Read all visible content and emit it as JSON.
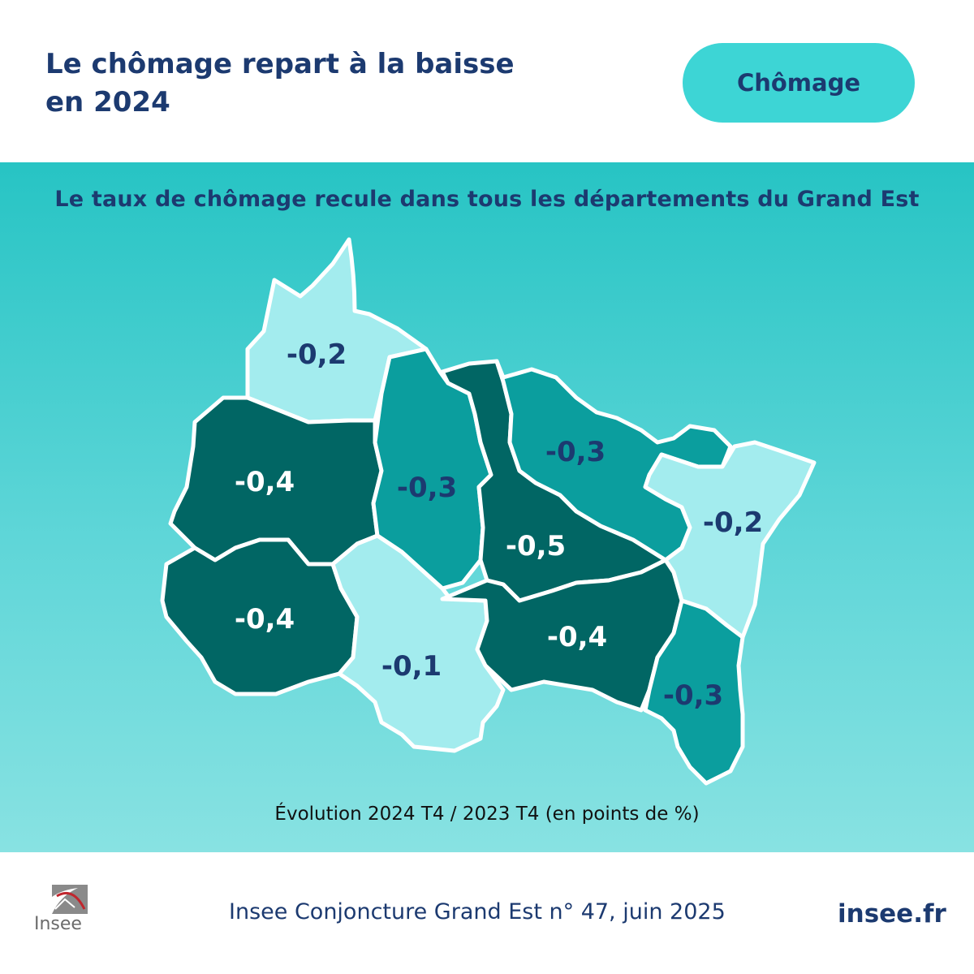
{
  "header": {
    "title_lines": [
      "Le chômage repart à la baisse",
      "en 2024"
    ],
    "tag": "Chômage"
  },
  "panel": {
    "subtitle": "Le taux de chômage recule dans tous les départements du Grand Est",
    "caption": "Évolution 2024 T4 / 2023 T4 (en points de %)"
  },
  "colors": {
    "light": "#a3ecee",
    "medium": "#0b9e9e",
    "dark": "#016664",
    "label_on_light": "#1c3a70",
    "label_on_dark": "#ffffff"
  },
  "regions": [
    {
      "value": "-0,2",
      "shade": "light"
    },
    {
      "value": "-0,4",
      "shade": "dark"
    },
    {
      "value": "-0,3",
      "shade": "medium"
    },
    {
      "value": "-0,4",
      "shade": "dark"
    },
    {
      "value": "-0,1",
      "shade": "light"
    },
    {
      "value": "-0,5",
      "shade": "dark"
    },
    {
      "value": "-0,3",
      "shade": "medium"
    },
    {
      "value": "-0,4",
      "shade": "dark"
    },
    {
      "value": "-0,2",
      "shade": "light"
    },
    {
      "value": "-0,3",
      "shade": "medium"
    }
  ],
  "footer": {
    "logo_text": "Insee",
    "source": "Insee Conjoncture Grand Est n° 47, juin 2025",
    "site": "insee.fr"
  }
}
